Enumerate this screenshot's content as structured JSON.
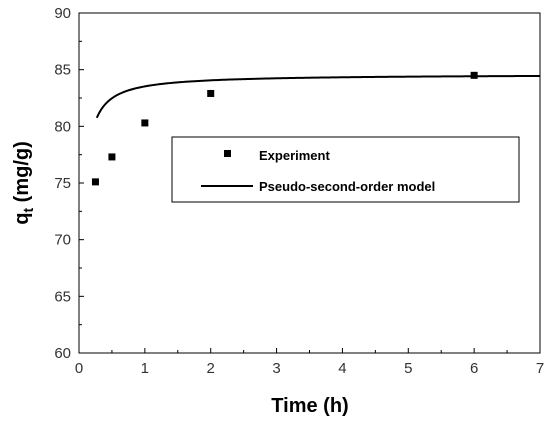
{
  "chart_data": {
    "type": "scatter",
    "title": "",
    "xlabel": "Time (h)",
    "ylabel_main": "q",
    "ylabel_sub": "t",
    "ylabel_unit": " (mg/g)",
    "xlim": [
      0,
      7
    ],
    "ylim": [
      60,
      90
    ],
    "x_ticks": [
      "0",
      "1",
      "2",
      "3",
      "4",
      "5",
      "6",
      "7"
    ],
    "y_ticks": [
      "60",
      "65",
      "70",
      "75",
      "80",
      "85",
      "90"
    ],
    "grid": false,
    "legend_position": "middle-right",
    "series": [
      {
        "name": "Experiment",
        "kind": "markers",
        "x": [
          0.25,
          0.5,
          1,
          2,
          6
        ],
        "y": [
          75.1,
          77.3,
          80.3,
          82.9,
          84.5
        ]
      },
      {
        "name": "Pseudo-second-order model",
        "kind": "line",
        "qe": 84.6,
        "k": 0.0153,
        "x_start": 0.27,
        "x_end": 7
      }
    ],
    "colors": {
      "series": "#000000",
      "axis": "#000000"
    }
  }
}
